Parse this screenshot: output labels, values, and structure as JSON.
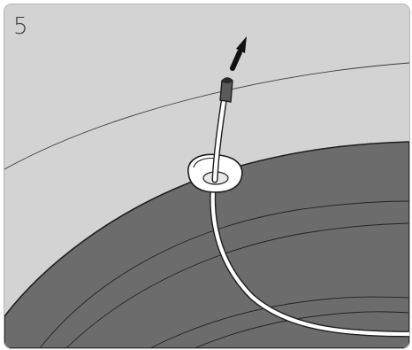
{
  "step": {
    "number": "5"
  },
  "colors": {
    "background_light": "#d3d3d3",
    "background_dark": "#6c6c6c",
    "outline": "#222222",
    "cable": "#ffffff",
    "arrow": "#111111",
    "frame_border": "#b5b5b5"
  },
  "illustration": {
    "parts": [
      "tire-sidewall-light",
      "tire-tread-dark",
      "grommet",
      "cable",
      "cable-end-cap",
      "pull-direction-arrow"
    ]
  }
}
